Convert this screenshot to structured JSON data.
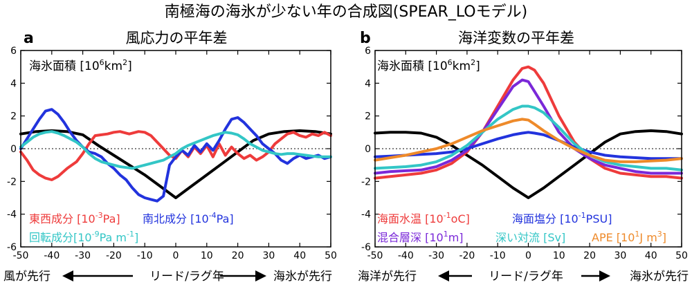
{
  "figure_title": "南極海の海氷が少ない年の合成図(SPEAR_LOモデル)",
  "xcaption_left": {
    "left": "風が先行",
    "center": "リード/ラグ年",
    "right": "海氷が先行"
  },
  "xcaption_right": {
    "left": "海洋が先行",
    "center": "リード/ラグ年",
    "right": "海氷が先行"
  },
  "colors": {
    "black": "#000000",
    "red": "#ee3b3b",
    "blue": "#2233dd",
    "cyan": "#33c6c6",
    "purple": "#7a28d8",
    "orange": "#ee8a2a"
  },
  "chart_data": [
    {
      "panel": "a",
      "type": "line",
      "title": "風応力の平年差",
      "xlabel": "",
      "ylabel": "",
      "xlim": [
        -50,
        50
      ],
      "ylim": [
        -6,
        6
      ],
      "xticks": [
        -50,
        -40,
        -30,
        -20,
        -10,
        0,
        10,
        20,
        30,
        40,
        50
      ],
      "yticks": [
        -6,
        -4,
        -2,
        0,
        2,
        4,
        6
      ],
      "zero_line": "dotted",
      "annotation": {
        "text": "海氷面積 [10",
        "sup": "6",
        "text2": "km",
        "sup2": "2",
        "text3": "]"
      },
      "series": [
        {
          "name": "海氷面積",
          "color": "#000000",
          "x": [
            -50,
            -45,
            -40,
            -35,
            -30,
            -25,
            -20,
            -15,
            -10,
            -5,
            0,
            5,
            10,
            15,
            20,
            25,
            30,
            35,
            40,
            45,
            50
          ],
          "y": [
            0.9,
            1.05,
            1.1,
            1.05,
            0.85,
            0.2,
            -0.4,
            -1.0,
            -1.6,
            -2.3,
            -3.0,
            -2.3,
            -1.6,
            -0.9,
            -0.2,
            0.5,
            0.9,
            1.05,
            1.1,
            1.05,
            0.9
          ]
        },
        {
          "name": "東西成分",
          "color": "#ee3b3b",
          "x": [
            -50,
            -48,
            -46,
            -44,
            -42,
            -40,
            -38,
            -35,
            -32,
            -30,
            -28,
            -26,
            -24,
            -22,
            -20,
            -18,
            -15,
            -12,
            -10,
            -8,
            -6,
            -4,
            -2,
            0,
            2,
            4,
            6,
            8,
            10,
            12,
            14,
            16,
            18,
            20,
            22,
            24,
            26,
            28,
            30,
            32,
            34,
            36,
            38,
            40,
            42,
            44,
            46,
            48,
            50
          ],
          "y": [
            -0.2,
            -0.7,
            -1.3,
            -1.6,
            -1.8,
            -1.9,
            -1.7,
            -1.2,
            -0.8,
            -0.3,
            0.3,
            0.8,
            0.85,
            0.9,
            1.0,
            1.05,
            0.9,
            1.05,
            1.0,
            0.8,
            0.4,
            0.0,
            -0.4,
            -0.6,
            -0.1,
            -0.5,
            0.1,
            -0.3,
            0.2,
            -0.5,
            0.3,
            -0.4,
            0.1,
            -0.3,
            -0.6,
            -0.4,
            -0.7,
            -0.5,
            -0.2,
            0.3,
            0.6,
            0.9,
            1.0,
            0.8,
            0.7,
            0.9,
            0.8,
            1.0,
            0.8
          ]
        },
        {
          "name": "南北成分",
          "color": "#2233dd",
          "x": [
            -50,
            -48,
            -46,
            -44,
            -42,
            -40,
            -38,
            -36,
            -34,
            -32,
            -30,
            -28,
            -26,
            -24,
            -22,
            -20,
            -18,
            -16,
            -14,
            -12,
            -10,
            -8,
            -6,
            -4,
            -2,
            0,
            2,
            4,
            6,
            8,
            10,
            12,
            14,
            16,
            18,
            20,
            22,
            24,
            26,
            28,
            30,
            32,
            34,
            36,
            38,
            40,
            42,
            44,
            46,
            48,
            50
          ],
          "y": [
            0.0,
            0.6,
            1.2,
            1.8,
            2.3,
            2.4,
            2.1,
            1.6,
            1.0,
            0.5,
            0.1,
            -0.2,
            -0.3,
            -0.5,
            -0.9,
            -1.2,
            -1.6,
            -1.9,
            -2.4,
            -2.8,
            -3.0,
            -3.1,
            -3.2,
            -2.9,
            -1.0,
            -0.5,
            -0.1,
            -0.4,
            0.2,
            -0.2,
            0.3,
            -0.1,
            0.5,
            1.2,
            1.8,
            1.9,
            1.6,
            1.2,
            0.8,
            0.3,
            0.0,
            -0.3,
            -0.7,
            -0.9,
            -0.6,
            -0.4,
            -0.6,
            -0.5,
            -0.4,
            -0.6,
            -0.5
          ]
        },
        {
          "name": "回転成分",
          "color": "#33c6c6",
          "x": [
            -50,
            -48,
            -46,
            -44,
            -42,
            -40,
            -38,
            -36,
            -34,
            -32,
            -30,
            -28,
            -26,
            -24,
            -22,
            -20,
            -18,
            -16,
            -14,
            -12,
            -10,
            -8,
            -6,
            -4,
            -2,
            0,
            2,
            4,
            6,
            8,
            10,
            12,
            14,
            16,
            18,
            20,
            22,
            24,
            26,
            28,
            30,
            32,
            34,
            36,
            38,
            40,
            42,
            44,
            46,
            48,
            50
          ],
          "y": [
            0.1,
            0.4,
            0.7,
            0.9,
            1.0,
            1.05,
            0.95,
            0.8,
            0.6,
            0.4,
            0.1,
            -0.3,
            -0.6,
            -0.8,
            -0.9,
            -1.0,
            -1.1,
            -1.15,
            -1.2,
            -1.1,
            -1.0,
            -0.9,
            -0.8,
            -0.7,
            -0.5,
            -0.3,
            0.0,
            0.2,
            0.35,
            0.5,
            0.65,
            0.8,
            0.9,
            1.0,
            0.95,
            0.85,
            0.6,
            0.3,
            0.1,
            -0.1,
            -0.2,
            -0.3,
            -0.35,
            -0.3,
            -0.3,
            -0.35,
            -0.4,
            -0.45,
            -0.5,
            -0.5,
            -0.5
          ]
        }
      ],
      "legend": [
        {
          "label": "東西成分 [10",
          "sup": "-3",
          "unit": "Pa]",
          "color": "#ee3b3b"
        },
        {
          "label": "南北成分 [10",
          "sup": "-4",
          "unit": "Pa]",
          "color": "#2233dd"
        },
        {
          "label": "回転成分[10",
          "sup": "-9",
          "unit": "Pa m",
          "sup2": "-1",
          "end": "]",
          "color": "#33c6c6"
        }
      ]
    },
    {
      "panel": "b",
      "type": "line",
      "title": "海洋変数の平年差",
      "xlabel": "",
      "ylabel": "",
      "xlim": [
        -50,
        50
      ],
      "ylim": [
        -6,
        6
      ],
      "xticks": [
        -50,
        -40,
        -30,
        -20,
        -10,
        0,
        10,
        20,
        30,
        40,
        50
      ],
      "yticks": [
        -6,
        -4,
        -2,
        0,
        2,
        4,
        6
      ],
      "zero_line": "dotted",
      "annotation": {
        "text": "海氷面積 [10",
        "sup": "6",
        "text2": "km",
        "sup2": "2",
        "text3": "]"
      },
      "series": [
        {
          "name": "海氷面積",
          "color": "#000000",
          "x": [
            -50,
            -45,
            -40,
            -35,
            -30,
            -25,
            -20,
            -15,
            -10,
            -5,
            0,
            5,
            10,
            15,
            20,
            25,
            30,
            35,
            40,
            45,
            50
          ],
          "y": [
            0.95,
            1.0,
            1.0,
            0.95,
            0.7,
            0.2,
            -0.4,
            -1.0,
            -1.7,
            -2.4,
            -3.0,
            -2.4,
            -1.7,
            -1.0,
            -0.3,
            0.4,
            0.9,
            1.05,
            1.1,
            1.05,
            0.9
          ]
        },
        {
          "name": "海面水温",
          "color": "#ee3b3b",
          "x": [
            -50,
            -45,
            -40,
            -35,
            -30,
            -25,
            -20,
            -15,
            -10,
            -5,
            -2,
            0,
            2,
            5,
            10,
            15,
            20,
            25,
            30,
            35,
            40,
            45,
            50
          ],
          "y": [
            -1.8,
            -1.7,
            -1.6,
            -1.5,
            -1.3,
            -0.9,
            -0.2,
            1.0,
            2.6,
            4.2,
            4.9,
            5.0,
            4.8,
            4.0,
            2.0,
            0.4,
            -0.6,
            -1.2,
            -1.5,
            -1.6,
            -1.7,
            -1.7,
            -1.8
          ]
        },
        {
          "name": "混合層深",
          "color": "#7a28d8",
          "x": [
            -50,
            -45,
            -40,
            -35,
            -30,
            -25,
            -20,
            -15,
            -10,
            -5,
            -2,
            0,
            2,
            5,
            10,
            15,
            20,
            25,
            30,
            35,
            40,
            45,
            50
          ],
          "y": [
            -1.5,
            -1.4,
            -1.35,
            -1.3,
            -1.1,
            -0.7,
            -0.1,
            1.0,
            2.4,
            3.8,
            4.2,
            4.1,
            3.5,
            2.6,
            1.0,
            0.0,
            -0.6,
            -1.0,
            -1.2,
            -1.4,
            -1.5,
            -1.5,
            -1.5
          ]
        },
        {
          "name": "海面塩分",
          "color": "#2233dd",
          "x": [
            -50,
            -45,
            -40,
            -35,
            -30,
            -25,
            -20,
            -15,
            -10,
            -5,
            -2,
            0,
            2,
            5,
            10,
            15,
            20,
            25,
            30,
            35,
            40,
            45,
            50
          ],
          "y": [
            -0.5,
            -0.45,
            -0.4,
            -0.35,
            -0.3,
            -0.2,
            0.0,
            0.3,
            0.6,
            0.85,
            0.95,
            1.0,
            0.95,
            0.85,
            0.5,
            0.1,
            -0.2,
            -0.4,
            -0.5,
            -0.55,
            -0.6,
            -0.6,
            -0.6
          ]
        },
        {
          "name": "深い対流",
          "color": "#33c6c6",
          "x": [
            -50,
            -45,
            -40,
            -35,
            -30,
            -25,
            -20,
            -15,
            -10,
            -5,
            -2,
            0,
            2,
            5,
            10,
            15,
            20,
            25,
            30,
            35,
            40,
            45,
            50
          ],
          "y": [
            -1.2,
            -1.15,
            -1.1,
            -1.0,
            -0.8,
            -0.4,
            0.2,
            1.0,
            1.8,
            2.4,
            2.6,
            2.6,
            2.5,
            2.2,
            1.3,
            0.3,
            -0.4,
            -0.8,
            -1.0,
            -1.1,
            -1.2,
            -1.2,
            -1.3
          ]
        },
        {
          "name": "APE",
          "color": "#ee8a2a",
          "x": [
            -50,
            -45,
            -40,
            -35,
            -30,
            -25,
            -20,
            -15,
            -10,
            -5,
            -2,
            0,
            2,
            5,
            10,
            15,
            20,
            25,
            30,
            35,
            40,
            45,
            50
          ],
          "y": [
            -0.7,
            -0.55,
            -0.4,
            -0.2,
            0.0,
            0.3,
            0.7,
            1.1,
            1.4,
            1.7,
            1.8,
            1.75,
            1.5,
            1.1,
            0.5,
            0.0,
            -0.4,
            -0.7,
            -0.8,
            -0.8,
            -0.75,
            -0.7,
            -0.6
          ]
        }
      ],
      "legend": [
        {
          "label": "海面水温 [10",
          "sup": "-1",
          "unit": "oC]",
          "color": "#ee3b3b"
        },
        {
          "label": "海面塩分 [10",
          "sup": "-1",
          "unit": "PSU]",
          "color": "#2233dd"
        },
        {
          "label": "混合層深 [10",
          "sup": "1",
          "unit": "m]",
          "color": "#7a28d8"
        },
        {
          "label": "深い対流 [Sv]",
          "sup": "",
          "unit": "",
          "color": "#33c6c6"
        },
        {
          "label": "APE [10",
          "sup": "1",
          "unit": "J m",
          "sup2": "3",
          "end": "]",
          "color": "#ee8a2a"
        }
      ]
    }
  ]
}
